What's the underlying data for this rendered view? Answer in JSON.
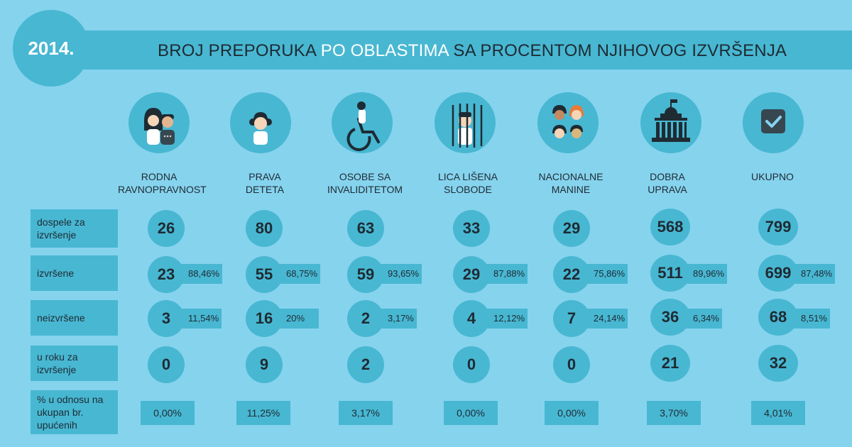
{
  "year": "2014.",
  "title": {
    "part1": "BROJ PREPORUKA ",
    "part2": "PO OBLASTIMA",
    "part3": " SA PROCENTOM  NJIHOVOG IZVRŠENJA"
  },
  "columns": [
    {
      "icon": "couple-icon",
      "label1": "RODNA",
      "label2": "RAVNOPRAVNOST"
    },
    {
      "icon": "child-icon",
      "label1": "PRAVA",
      "label2": "DETETA"
    },
    {
      "icon": "wheelchair-icon",
      "label1": "OSOBE SA",
      "label2": "INVALIDITETOM"
    },
    {
      "icon": "prisoner-icon",
      "label1": "LICA LIŠENA",
      "label2": "SLOBODE"
    },
    {
      "icon": "faces-icon",
      "label1": "NACIONALNE",
      "label2": "MANINE"
    },
    {
      "icon": "government-building-icon",
      "label1": "DOBRA",
      "label2": "UPRAVA"
    },
    {
      "icon": "checkbox-icon",
      "label1": "UKUPNO",
      "label2": ""
    }
  ],
  "rows": {
    "dospele": {
      "label1": "dospele za",
      "label2": "izvršenje"
    },
    "izvrsene": {
      "label1": "izvršene",
      "label2": ""
    },
    "neizvrsene": {
      "label1": "neizvršene",
      "label2": ""
    },
    "u_roku": {
      "label1": "u roku za",
      "label2": "izvršenje"
    },
    "procenat": {
      "label1": "% u odnosu na",
      "label2": "ukupan br.",
      "label3": "upućenih"
    }
  },
  "values": {
    "dospele": [
      "26",
      "80",
      "63",
      "33",
      "29",
      "568",
      "799"
    ],
    "izvrsene": [
      "23",
      "55",
      "59",
      "29",
      "22",
      "511",
      "699"
    ],
    "izvrsene_pct": [
      "88,46%",
      "68,75%",
      "93,65%",
      "87,88%",
      "75,86%",
      "89,96%",
      "87,48%"
    ],
    "neizvrsene": [
      "3",
      "16",
      "2",
      "4",
      "7",
      "36",
      "68"
    ],
    "neizvrsene_pct": [
      "11,54%",
      "20%",
      "3,17%",
      "12,12%",
      "24,14%",
      "6,34%",
      "8,51%"
    ],
    "u_roku": [
      "0",
      "9",
      "2",
      "0",
      "0",
      "21",
      "32"
    ],
    "procenat": [
      "0,00%",
      "11,25%",
      "3,17%",
      "0,00%",
      "0,00%",
      "3,70%",
      "4,01%"
    ]
  },
  "colors": {
    "background": "#86d3ee",
    "accent": "#48b7d2",
    "text": "#1e2b33",
    "highlight": "#ffffff"
  }
}
